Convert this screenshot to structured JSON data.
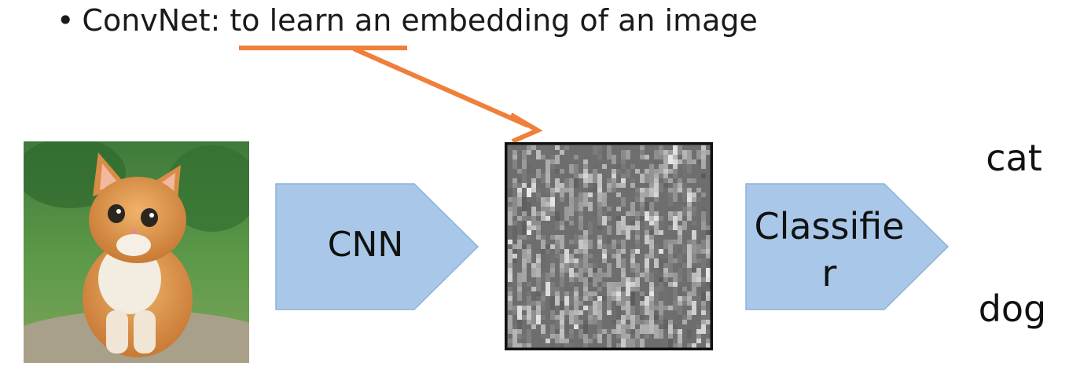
{
  "bullet": {
    "symbol": "•",
    "prefix": "ConvNet: ",
    "highlight": "to learn an",
    "suffix": " embedding of an image"
  },
  "diagram": {
    "cnn_label": "CNN",
    "classifier_label_line1": "Classifie",
    "classifier_label_line2": "r",
    "outputs": [
      "cat",
      "dog"
    ],
    "colors": {
      "arrow_fill": "#a9c7e8",
      "arrow_stroke": "#8eb2da",
      "annotation": "#ef7f3a",
      "embedding_bg": "#6e6e6e",
      "embedding_border": "#111111"
    },
    "icons": {
      "input": "cat-photo",
      "embedding": "feature-map"
    }
  }
}
